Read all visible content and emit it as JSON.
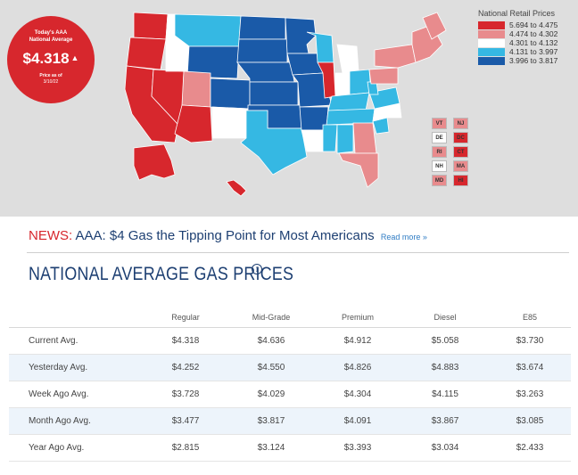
{
  "badge": {
    "line1": "Today's AAA",
    "line2": "National Average",
    "price": "$4.318",
    "arrow": "▲",
    "sub1": "Price as of",
    "sub2": "3/10/22",
    "color": "#d7272d"
  },
  "legend": {
    "title": "National Retail Prices",
    "items": [
      {
        "label": "5.694 to 4.475",
        "color": "#d7272d"
      },
      {
        "label": "4.474 to 4.302",
        "color": "#e88b8d"
      },
      {
        "label": "4.301 to 4.132",
        "color": "#ffffff"
      },
      {
        "label": "4.131 to 3.997",
        "color": "#35b8e3"
      },
      {
        "label": "3.996 to 3.817",
        "color": "#1a5aa8"
      }
    ]
  },
  "ne_states": [
    {
      "code": "VT",
      "color": "#e88b8d"
    },
    {
      "code": "NJ",
      "color": "#e88b8d"
    },
    {
      "code": "DE",
      "color": "#ffffff"
    },
    {
      "code": "DC",
      "color": "#d7272d"
    },
    {
      "code": "RI",
      "color": "#e88b8d"
    },
    {
      "code": "CT",
      "color": "#d7272d"
    },
    {
      "code": "NH",
      "color": "#ffffff"
    },
    {
      "code": "MA",
      "color": "#e88b8d"
    },
    {
      "code": "MD",
      "color": "#e88b8d"
    },
    {
      "code": "HI",
      "color": "#d7272d"
    }
  ],
  "news": {
    "label": "NEWS:",
    "headline": "AAA: $4 Gas the Tipping Point for Most Americans",
    "more": "Read more »"
  },
  "section_title": "NATIONAL AVERAGE GAS PRICES",
  "info_icon": "i",
  "table": {
    "columns": [
      "Regular",
      "Mid-Grade",
      "Premium",
      "Diesel",
      "E85"
    ],
    "rows": [
      {
        "label": "Current Avg.",
        "values": [
          "$4.318",
          "$4.636",
          "$4.912",
          "$5.058",
          "$3.730"
        ]
      },
      {
        "label": "Yesterday Avg.",
        "values": [
          "$4.252",
          "$4.550",
          "$4.826",
          "$4.883",
          "$3.674"
        ]
      },
      {
        "label": "Week Ago Avg.",
        "values": [
          "$3.728",
          "$4.029",
          "$4.304",
          "$4.115",
          "$3.263"
        ]
      },
      {
        "label": "Month Ago Avg.",
        "values": [
          "$3.477",
          "$3.817",
          "$4.091",
          "$3.867",
          "$3.085"
        ]
      },
      {
        "label": "Year Ago Avg.",
        "values": [
          "$2.815",
          "$3.124",
          "$3.393",
          "$3.034",
          "$2.433"
        ]
      }
    ]
  }
}
